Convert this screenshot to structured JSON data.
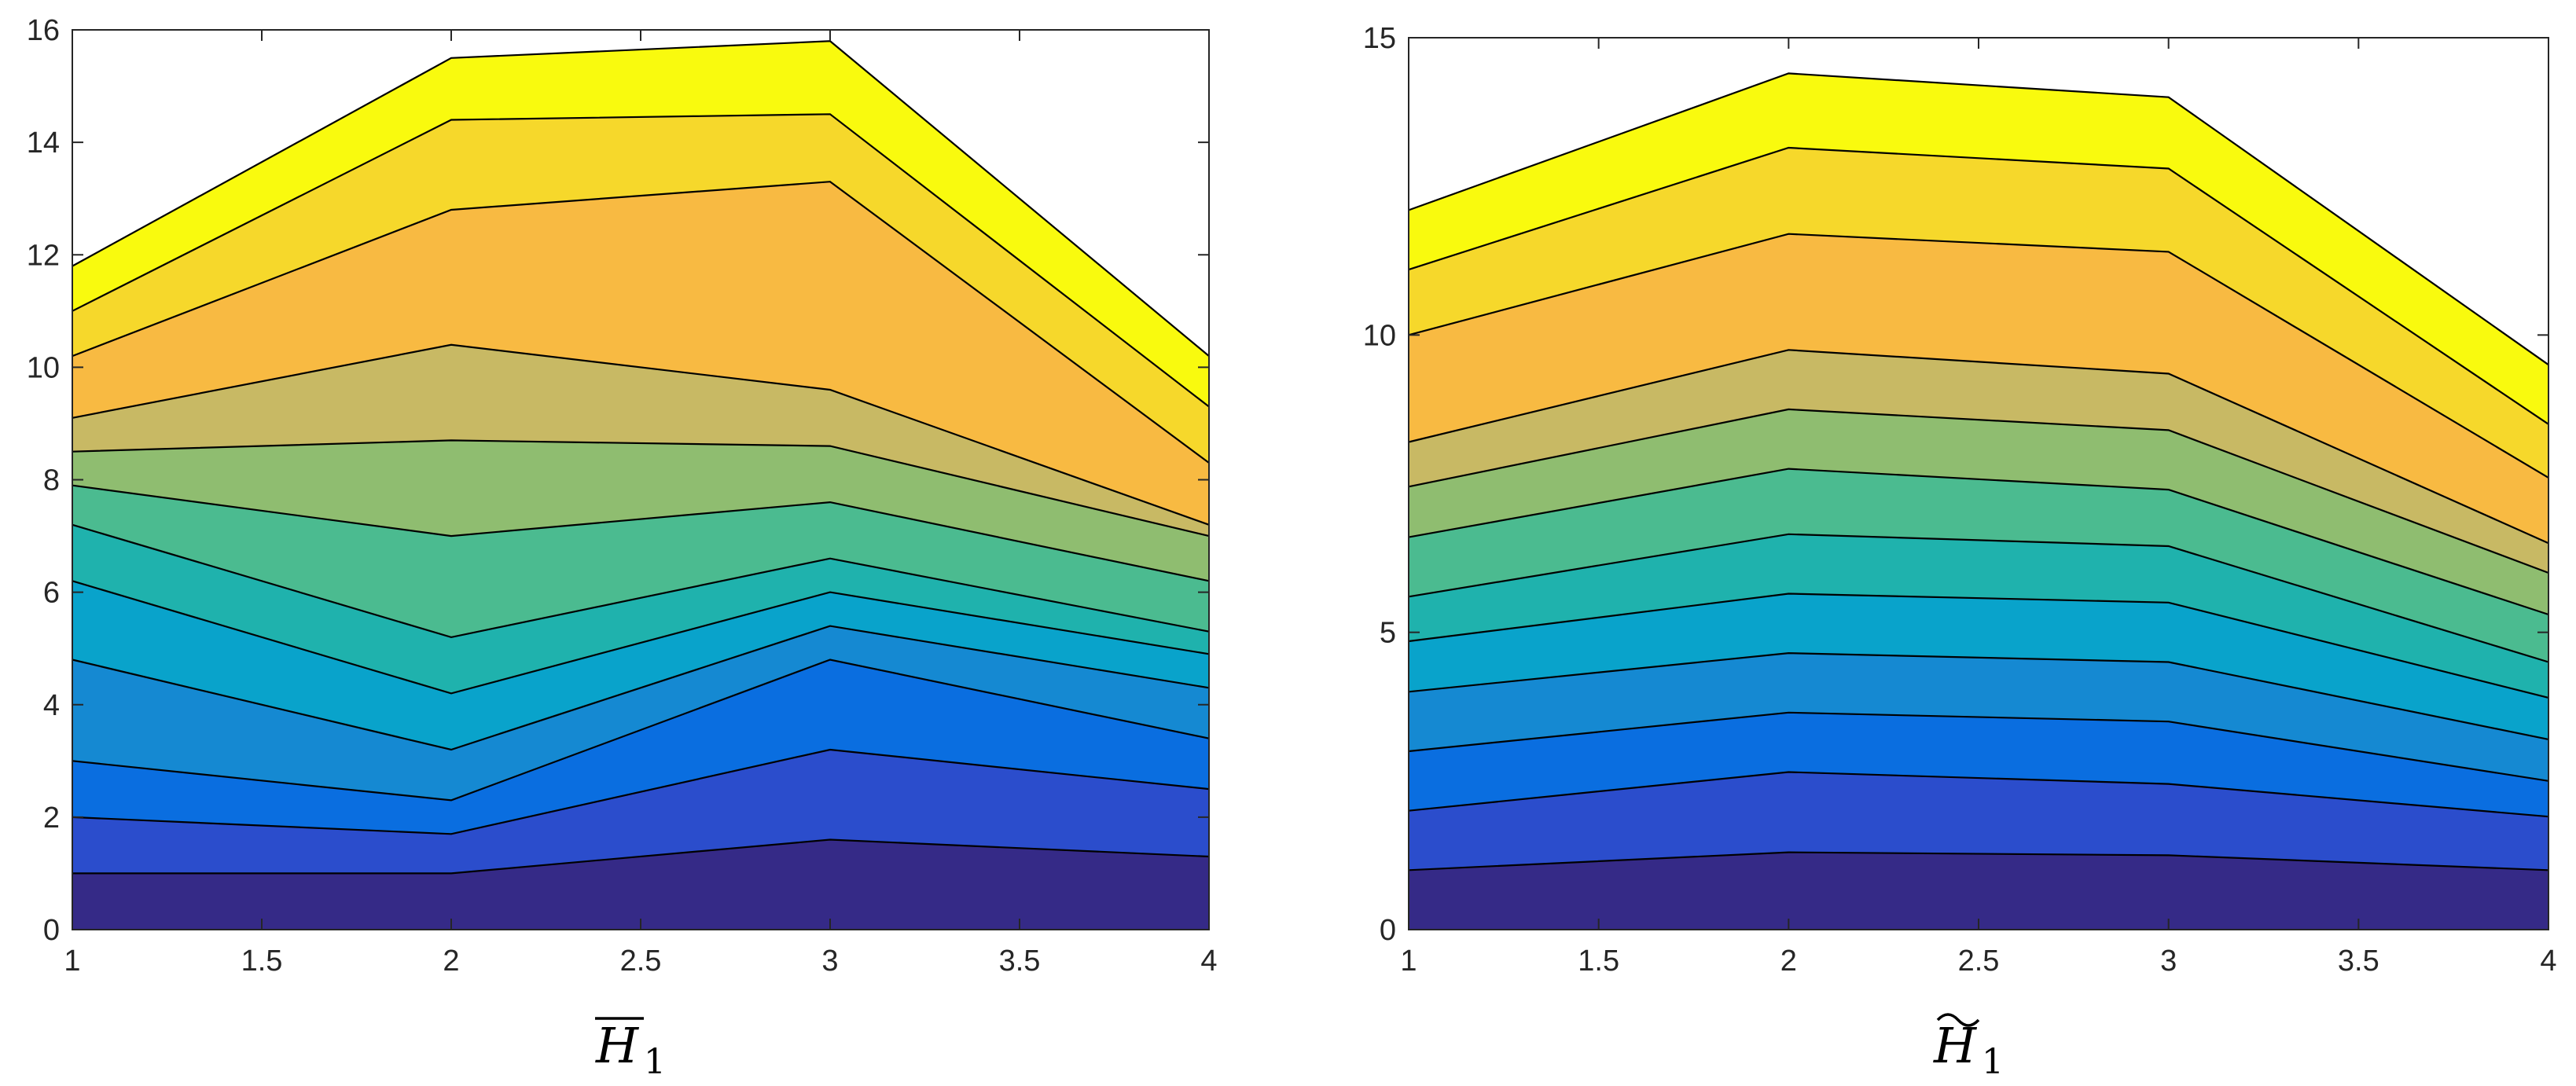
{
  "chart_data": [
    {
      "type": "area",
      "title": "",
      "xlabel": "H",
      "xlabel_decoration": "overline",
      "xlabel_subscript": "1",
      "ylabel": "",
      "x": [
        1,
        2,
        3,
        4
      ],
      "xlim": [
        1,
        4
      ],
      "ylim": [
        0,
        16
      ],
      "xticks": [
        "1",
        "1.5",
        "2",
        "2.5",
        "3",
        "3.5",
        "4"
      ],
      "yticks": [
        "0",
        "2",
        "4",
        "6",
        "8",
        "10",
        "12",
        "14",
        "16"
      ],
      "grid": false,
      "legend": "none",
      "boundaries": [
        [
          1.0,
          1.0,
          1.6,
          1.3
        ],
        [
          2.0,
          1.7,
          3.2,
          2.5
        ],
        [
          3.0,
          2.3,
          4.8,
          3.4
        ],
        [
          4.8,
          3.2,
          5.4,
          4.3
        ],
        [
          6.2,
          4.2,
          6.0,
          4.9
        ],
        [
          7.2,
          5.2,
          6.6,
          5.3
        ],
        [
          7.9,
          7.0,
          7.6,
          6.2
        ],
        [
          8.5,
          8.7,
          8.6,
          7.0
        ],
        [
          9.1,
          10.4,
          9.6,
          7.2
        ],
        [
          10.2,
          12.8,
          13.3,
          8.3
        ],
        [
          11.0,
          14.4,
          14.5,
          9.3
        ],
        [
          11.8,
          15.5,
          15.8,
          10.2
        ]
      ]
    },
    {
      "type": "area",
      "title": "",
      "xlabel": "H",
      "xlabel_decoration": "tilde",
      "xlabel_subscript": "1",
      "ylabel": "",
      "x": [
        1,
        2,
        3,
        4
      ],
      "xlim": [
        1,
        4
      ],
      "ylim": [
        0,
        15
      ],
      "xticks": [
        "1",
        "1.5",
        "2",
        "2.5",
        "3",
        "3.5",
        "4"
      ],
      "yticks": [
        "0",
        "5",
        "10",
        "15"
      ],
      "grid": false,
      "legend": "none",
      "boundaries": [
        [
          1.0,
          1.3,
          1.25,
          1.0
        ],
        [
          2.0,
          2.65,
          2.45,
          1.9
        ],
        [
          3.0,
          3.65,
          3.5,
          2.5
        ],
        [
          4.0,
          4.65,
          4.5,
          3.2
        ],
        [
          4.85,
          5.65,
          5.5,
          3.9
        ],
        [
          5.6,
          6.65,
          6.45,
          4.5
        ],
        [
          6.6,
          7.75,
          7.4,
          5.3
        ],
        [
          7.45,
          8.75,
          8.4,
          6.0
        ],
        [
          8.2,
          9.75,
          9.35,
          6.5
        ],
        [
          10.0,
          11.7,
          11.4,
          7.6
        ],
        [
          11.1,
          13.15,
          12.8,
          8.5
        ],
        [
          12.1,
          14.4,
          14.0,
          9.5
        ]
      ]
    }
  ],
  "colors": {
    "fills": [
      "#352a87",
      "#2b4dcc",
      "#0a6ee0",
      "#1589d2",
      "#09a3cb",
      "#1fb2ad",
      "#4bbb90",
      "#8fbd70",
      "#c8b964",
      "#f8ba42",
      "#f6d82b",
      "#f9fa0e"
    ],
    "line": "#000000",
    "axis": "#262626"
  }
}
